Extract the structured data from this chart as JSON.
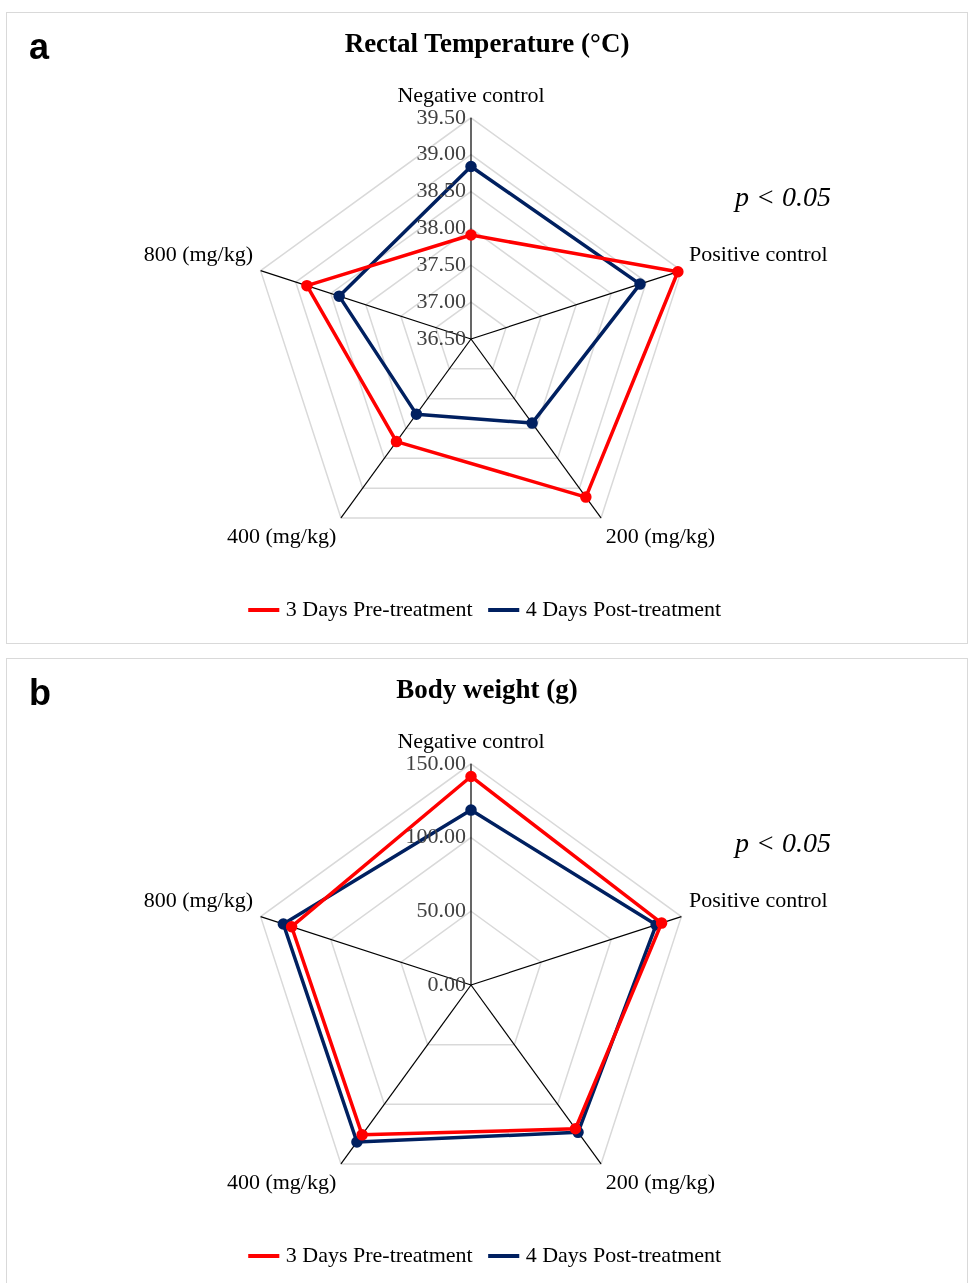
{
  "chart_data": [
    {
      "type": "radar",
      "title": "Rectal Temperature (°C)",
      "annotations": [
        "a",
        "p < 0.05"
      ],
      "categories": [
        "Negative control",
        "Positive control",
        "200 (mg/kg)",
        "400 (mg/kg)",
        "800 (mg/kg)"
      ],
      "series": [
        {
          "name": "3 Days Pre-treatment",
          "color": "#ff0000",
          "values": [
            37.91,
            39.45,
            39.15,
            38.22,
            38.84
          ]
        },
        {
          "name": "4 Days Post-treatment",
          "color": "#002060",
          "values": [
            38.84,
            38.91,
            37.91,
            37.76,
            38.38
          ]
        }
      ],
      "ylim": [
        36.5,
        39.5
      ],
      "yticks": [
        {
          "value": 36.5,
          "label": "36.50"
        },
        {
          "value": 37,
          "label": "37.00"
        },
        {
          "value": 37.5,
          "label": "37.50"
        },
        {
          "value": 38,
          "label": "38.00"
        },
        {
          "value": 38.5,
          "label": "38.50"
        },
        {
          "value": 39,
          "label": "39.00"
        },
        {
          "value": 39.5,
          "label": "39.50"
        }
      ],
      "grid": true,
      "legend": "bottom",
      "marker": "circle"
    },
    {
      "type": "radar",
      "title": "Body weight (g)",
      "annotations": [
        "b",
        "p < 0.05"
      ],
      "categories": [
        "Negative control",
        "Positive control",
        "200 (mg/kg)",
        "400 (mg/kg)",
        "800 (mg/kg)"
      ],
      "series": [
        {
          "name": "3 Days Pre-treatment",
          "color": "#ff0000",
          "values": [
            141.4,
            135.9,
            120.5,
            125.6,
            127.9
          ]
        },
        {
          "name": "4 Days Post-treatment",
          "color": "#002060",
          "values": [
            118.6,
            132,
            123.5,
            131.6,
            133.8
          ]
        }
      ],
      "ylim": [
        0,
        150
      ],
      "yticks": [
        {
          "value": 0,
          "label": "0.00"
        },
        {
          "value": 50,
          "label": "50.00"
        },
        {
          "value": 100,
          "label": "100.00"
        },
        {
          "value": 150,
          "label": "150.00"
        }
      ],
      "grid": true,
      "legend": "bottom",
      "marker": "circle"
    }
  ]
}
